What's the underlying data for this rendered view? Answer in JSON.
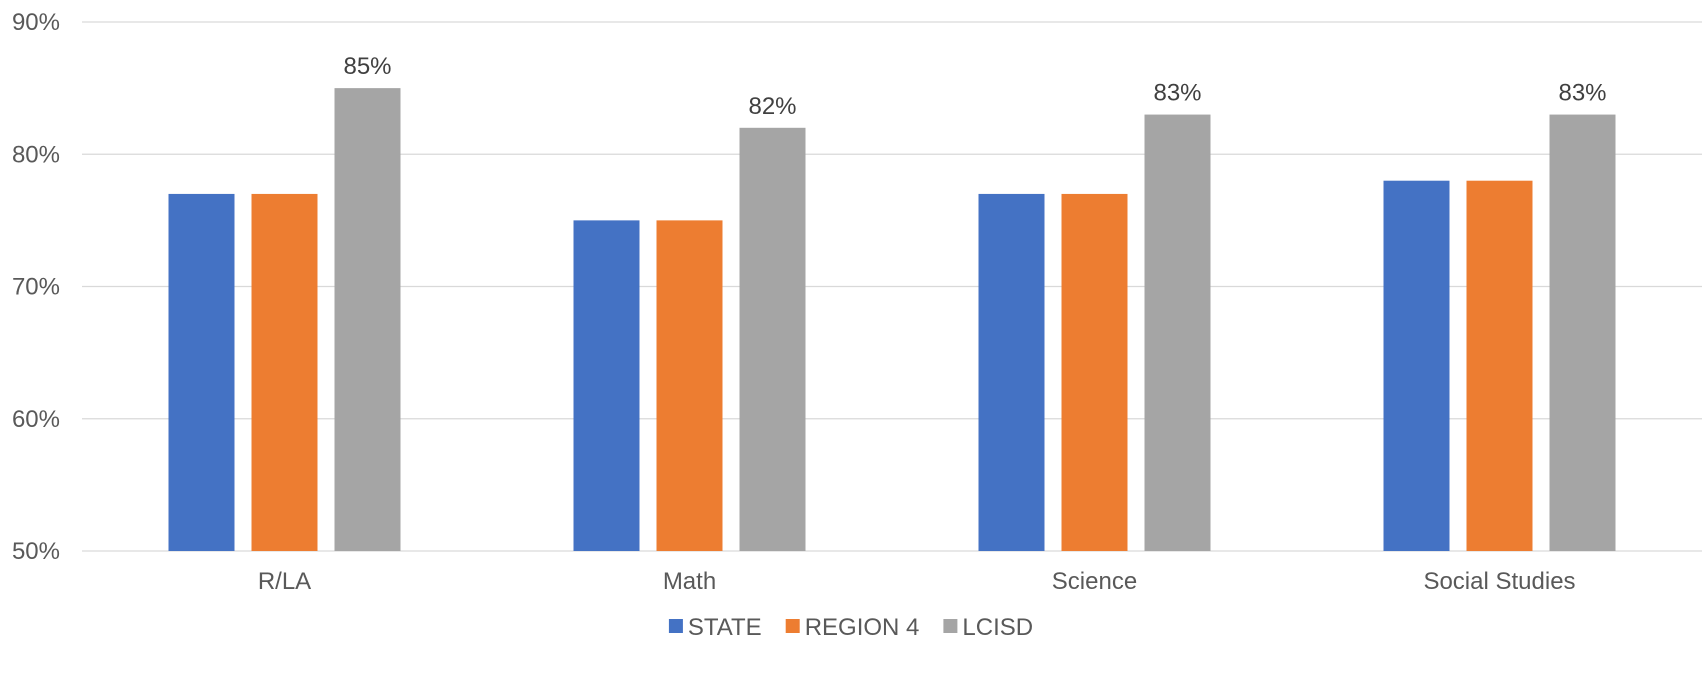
{
  "chart_data": {
    "type": "bar",
    "title": "",
    "xlabel": "",
    "ylabel": "",
    "categories": [
      "R/LA",
      "Math",
      "Science",
      "Social Studies"
    ],
    "series": [
      {
        "name": "STATE",
        "color": "#4472c4",
        "values": [
          77,
          75,
          77,
          78
        ],
        "data_labels": [
          "",
          "",
          "",
          ""
        ]
      },
      {
        "name": "REGION 4",
        "color": "#ed7d31",
        "values": [
          77,
          75,
          77,
          78
        ],
        "data_labels": [
          "",
          "",
          "",
          ""
        ]
      },
      {
        "name": "LCISD",
        "color": "#a5a5a5",
        "values": [
          85,
          82,
          83,
          83
        ],
        "data_labels": [
          "85%",
          "82%",
          "83%",
          "83%"
        ]
      }
    ],
    "ylim": [
      50,
      90
    ],
    "yticks": [
      50,
      60,
      70,
      80,
      90
    ],
    "ytick_labels": [
      "50%",
      "60%",
      "70%",
      "80%",
      "90%"
    ],
    "grid": true,
    "legend_position": "bottom"
  }
}
